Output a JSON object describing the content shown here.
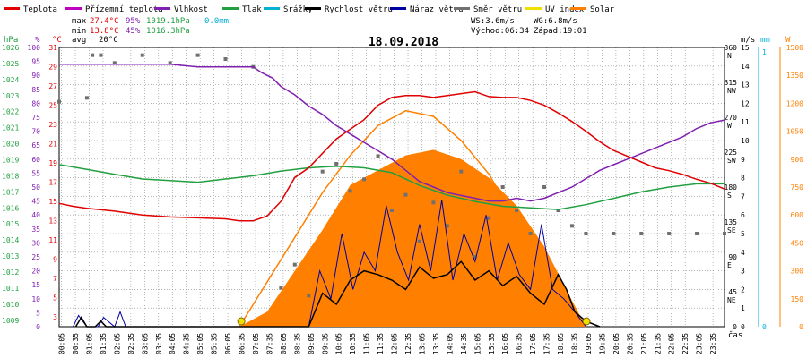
{
  "legend": [
    {
      "label": "Teplota",
      "color": "#e00000"
    },
    {
      "label": "Přízemní teplota",
      "color": "#c000c0"
    },
    {
      "label": "Vlhkost",
      "color": "#8020b0"
    },
    {
      "label": "Tlak",
      "color": "#20a040"
    },
    {
      "label": "Srážky",
      "color": "#00b0d0"
    },
    {
      "label": "Rychlost větru",
      "color": "#000000"
    },
    {
      "label": "Náraz větru",
      "color": "#0000a0"
    },
    {
      "label": "Směr větru",
      "color": "#707070"
    },
    {
      "label": "UV index",
      "color": "#f0e000"
    },
    {
      "label": "Solar",
      "color": "#ff8000"
    }
  ],
  "stats": {
    "max_label": "max",
    "max_temp": "27.4°C",
    "max_hum": "95%",
    "max_press": "1019.1hPa",
    "max_rain": "0.0mm",
    "min_label": "min",
    "min_temp": "13.8°C",
    "min_hum": "45%",
    "min_press": "1016.3hPa",
    "avg_label": "avg",
    "avg_temp": "20°C"
  },
  "wind_info": {
    "ws": "WS:3.6m/s",
    "wg": "WG:6.8m/s",
    "sunrise": "Východ:06:34",
    "sunset": "Západ:19:01"
  },
  "date": "18.09.2018",
  "axis_units": {
    "hpa": "hPa",
    "percent": "%",
    "celsius": "°C",
    "ms": "m/s",
    "mm": "mm",
    "w": "W",
    "time": "čas"
  },
  "axes": {
    "hpa_ticks": [
      "1026",
      "1025",
      "1024",
      "1023",
      "1022",
      "1021",
      "1020",
      "1019",
      "1018",
      "1017",
      "1016",
      "1015",
      "1014",
      "1013",
      "1012",
      "1011",
      "1010",
      "1009"
    ],
    "pct_ticks": [
      "100",
      "95",
      "90",
      "85",
      "80",
      "75",
      "70",
      "65",
      "60",
      "55",
      "50",
      "45",
      "40",
      "35",
      "30",
      "25",
      "20",
      "15",
      "10",
      "5",
      "0"
    ],
    "temp_ticks": [
      "31",
      "29",
      "27",
      "25",
      "23",
      "21",
      "19",
      "17",
      "15",
      "13",
      "11",
      "9",
      "7",
      "5",
      "3"
    ],
    "dir_ticks": [
      {
        "deg": "360",
        "dir": "N"
      },
      {
        "deg": "315",
        "dir": "NW"
      },
      {
        "deg": "270",
        "dir": "W"
      },
      {
        "deg": "225",
        "dir": "SW"
      },
      {
        "deg": "180",
        "dir": "S"
      },
      {
        "deg": "135",
        "dir": "SE"
      },
      {
        "deg": "90",
        "dir": "E"
      },
      {
        "deg": "45",
        "dir": "NE"
      },
      {
        "deg": "0",
        "dir": ""
      }
    ],
    "ms_ticks": [
      "15",
      "14",
      "13",
      "12",
      "11",
      "10",
      "9",
      "8",
      "7",
      "6",
      "5",
      "4",
      "3",
      "2",
      "1",
      "0"
    ],
    "mm_ticks": [
      "1",
      "0"
    ],
    "w_ticks": [
      "1500",
      "1350",
      "1200",
      "1050",
      "900",
      "750",
      "600",
      "450",
      "300",
      "150",
      "0"
    ],
    "time_ticks": [
      "00:05",
      "00:35",
      "01:05",
      "01:35",
      "02:05",
      "02:35",
      "03:05",
      "03:35",
      "04:05",
      "04:35",
      "05:05",
      "05:35",
      "06:05",
      "06:35",
      "07:05",
      "07:35",
      "08:05",
      "08:35",
      "09:05",
      "09:35",
      "10:05",
      "10:35",
      "11:05",
      "11:35",
      "12:05",
      "12:35",
      "13:05",
      "13:35",
      "14:05",
      "14:35",
      "15:05",
      "15:35",
      "16:05",
      "16:35",
      "17:05",
      "17:35",
      "18:05",
      "18:35",
      "19:05",
      "19:35",
      "20:05",
      "20:35",
      "21:05",
      "21:35",
      "22:05",
      "22:35",
      "23:05",
      "23:35"
    ]
  },
  "chart_data": {
    "type": "line",
    "title": "18.09.2018",
    "xlabel": "čas",
    "xlim_hours": [
      0,
      24
    ],
    "ylim_temp_c": [
      3,
      32
    ],
    "ylim_humidity_pct": [
      0,
      100
    ],
    "ylim_pressure_hpa": [
      1009,
      1026.4
    ],
    "ylim_wind_ms": [
      0,
      15
    ],
    "ylim_direction_deg": [
      0,
      360
    ],
    "ylim_solar_w": [
      0,
      1500
    ],
    "series": [
      {
        "name": "Teplota",
        "unit": "°C",
        "x": [
          0,
          0.5,
          1,
          2,
          3,
          4,
          5,
          6,
          6.5,
          7,
          7.5,
          8,
          8.5,
          9,
          9.5,
          10,
          10.5,
          11,
          11.5,
          12,
          12.5,
          13,
          13.5,
          14,
          14.5,
          15,
          15.5,
          16,
          16.5,
          17,
          17.5,
          18,
          18.5,
          19,
          19.5,
          20,
          20.5,
          21,
          21.5,
          22,
          22.5,
          23,
          23.5,
          24
        ],
        "y": [
          15.8,
          15.5,
          15.3,
          15.0,
          14.6,
          14.4,
          14.3,
          14.2,
          14.0,
          14.0,
          14.5,
          16.0,
          18.5,
          19.5,
          21.0,
          22.5,
          23.5,
          24.5,
          26.0,
          26.8,
          27.0,
          27.0,
          26.8,
          27.0,
          27.2,
          27.4,
          26.9,
          26.8,
          26.8,
          26.5,
          26.0,
          25.2,
          24.3,
          23.3,
          22.2,
          21.3,
          20.7,
          20.1,
          19.5,
          19.2,
          18.8,
          18.3,
          17.9,
          17.3
        ]
      },
      {
        "name": "Vlhkost",
        "unit": "%",
        "x": [
          0,
          1,
          2,
          3,
          4,
          5,
          6,
          7,
          7.3,
          7.7,
          8,
          8.5,
          9,
          9.5,
          10,
          10.5,
          11,
          11.5,
          12,
          12.5,
          13,
          13.5,
          14,
          14.5,
          15,
          15.5,
          16,
          16.5,
          17,
          17.5,
          18,
          18.5,
          19,
          19.5,
          20,
          20.5,
          21,
          21.5,
          22,
          22.5,
          23,
          23.5,
          24
        ],
        "y": [
          94,
          94,
          94,
          94,
          94,
          93,
          93,
          93,
          91,
          89,
          86,
          83,
          79,
          76,
          72,
          69,
          66,
          63,
          60,
          56,
          52,
          50,
          48,
          47,
          46,
          45,
          45,
          46,
          45,
          46,
          48,
          50,
          53,
          56,
          58,
          60,
          62,
          64,
          66,
          68,
          71,
          73,
          74
        ]
      },
      {
        "name": "Tlak",
        "unit": "hPa",
        "x": [
          0,
          1,
          2,
          3,
          4,
          5,
          6,
          7,
          8,
          9,
          10,
          11,
          12,
          13,
          14,
          15,
          16,
          17,
          18,
          19,
          20,
          21,
          22,
          23,
          24
        ],
        "y": [
          1019.1,
          1018.8,
          1018.5,
          1018.2,
          1018.1,
          1018.0,
          1018.2,
          1018.4,
          1018.7,
          1018.9,
          1019.0,
          1018.9,
          1018.6,
          1017.8,
          1017.2,
          1016.8,
          1016.5,
          1016.4,
          1016.3,
          1016.6,
          1017.0,
          1017.4,
          1017.7,
          1017.9,
          1017.9
        ]
      },
      {
        "name": "Rychlost větru",
        "unit": "m/s",
        "x": [
          0.6,
          0.8,
          1.0,
          1.3,
          1.5,
          1.7,
          2.0,
          9.0,
          9.5,
          10.0,
          10.5,
          11.0,
          11.5,
          12.0,
          12.5,
          13.0,
          13.5,
          14.0,
          14.5,
          15.0,
          15.5,
          16.0,
          16.5,
          17.0,
          17.5,
          18.0,
          18.3,
          18.6,
          19.0,
          19.5
        ],
        "y": [
          0,
          0.5,
          0,
          0,
          0.3,
          0,
          0,
          0,
          1.8,
          1.2,
          2.5,
          3.0,
          2.8,
          2.5,
          2.0,
          3.2,
          2.6,
          2.8,
          3.5,
          2.5,
          3.0,
          2.2,
          2.7,
          1.8,
          1.2,
          2.8,
          2.0,
          0.8,
          0.3,
          0
        ]
      },
      {
        "name": "Náraz větru",
        "unit": "m/s",
        "x": [
          0.5,
          0.7,
          1.0,
          1.4,
          1.6,
          2.0,
          2.2,
          2.4,
          9.0,
          9.4,
          9.8,
          10.2,
          10.6,
          11.0,
          11.4,
          11.8,
          12.2,
          12.6,
          13.0,
          13.4,
          13.8,
          14.2,
          14.6,
          15.0,
          15.4,
          15.8,
          16.2,
          16.6,
          17.0,
          17.4,
          17.8,
          18.2,
          18.6,
          19.0
        ],
        "y": [
          0,
          0.6,
          0,
          0,
          0.5,
          0,
          0.8,
          0,
          0,
          3.0,
          1.5,
          5.0,
          2.0,
          4.0,
          3.0,
          6.5,
          4.0,
          2.5,
          5.5,
          3.0,
          6.8,
          2.5,
          5.0,
          3.5,
          6.0,
          2.5,
          4.5,
          2.8,
          2.0,
          5.5,
          2.0,
          1.5,
          0.8,
          0
        ]
      },
      {
        "name": "Solar",
        "unit": "W",
        "x": [
          6.5,
          7.5,
          8.5,
          9.5,
          10.5,
          11.5,
          12.5,
          13.5,
          14.5,
          15.5,
          16.5,
          17.5,
          18.5,
          19.0
        ],
        "y": [
          0,
          80,
          300,
          520,
          760,
          840,
          920,
          950,
          900,
          800,
          650,
          430,
          140,
          0
        ]
      },
      {
        "name": "Solar max",
        "unit": "W",
        "x": [
          6.5,
          7.5,
          8.5,
          9.5,
          10.5,
          11.5,
          12.5,
          13.5,
          14.5,
          15.5,
          16.5,
          17.5,
          18.5,
          19.0
        ],
        "y": [
          0,
          240,
          480,
          720,
          920,
          1080,
          1160,
          1130,
          1000,
          820,
          560,
          300,
          60,
          0
        ]
      },
      {
        "name": "Směr větru",
        "unit": "°",
        "x": [
          0,
          1,
          1.2,
          1.5,
          2.0,
          3.0,
          4.0,
          5.0,
          6.0,
          7.0,
          8.0,
          8.5,
          9.0,
          9.5,
          10.0,
          10.5,
          11.0,
          11.5,
          12.0,
          12.5,
          13.0,
          13.5,
          14.0,
          14.5,
          15.0,
          15.5,
          16.0,
          16.5,
          17.0,
          17.5,
          18.0,
          18.5,
          19.0,
          20.0,
          21.0,
          22.0,
          23.0,
          24.0
        ],
        "y": [
          290,
          295,
          350,
          350,
          340,
          350,
          340,
          350,
          345,
          335,
          50,
          80,
          40,
          200,
          210,
          175,
          190,
          220,
          150,
          170,
          110,
          160,
          130,
          200,
          90,
          140,
          180,
          150,
          120,
          180,
          150,
          130,
          120,
          120,
          120,
          120,
          120,
          120
        ]
      }
    ],
    "markers": [
      {
        "name": "Východ",
        "x": 6.57
      },
      {
        "name": "Západ",
        "x": 19.02
      }
    ]
  }
}
